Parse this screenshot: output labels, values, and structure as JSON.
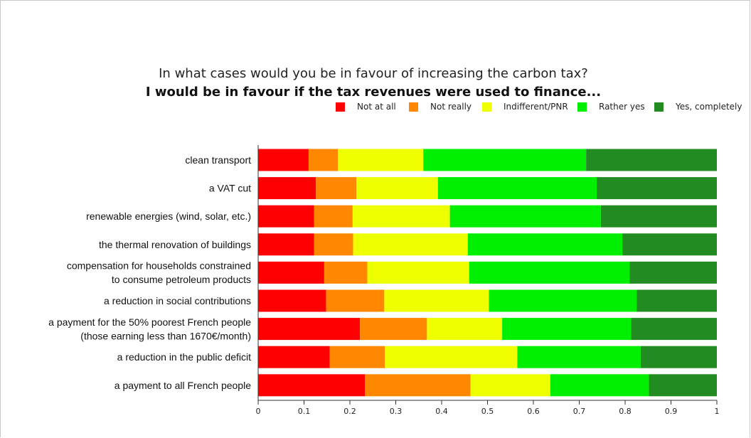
{
  "chart_data": {
    "type": "bar",
    "orientation": "horizontal",
    "stacked": true,
    "title": "In what cases would you be in favour of increasing the carbon tax?",
    "subtitle": "I would be in favour if the tax revenues were used to finance...",
    "categories": [
      [
        "clean transport"
      ],
      [
        "a VAT cut"
      ],
      [
        "renewable energies (wind, solar, etc.)"
      ],
      [
        "the thermal renovation of buildings"
      ],
      [
        "compensation for households constrained",
        "to consume petroleum products"
      ],
      [
        "a reduction in social contributions"
      ],
      [
        "a payment for the 50% poorest French people",
        "(those earning less than 1670€/month)"
      ],
      [
        "a reduction in the public deficit"
      ],
      [
        "a payment to all French people"
      ]
    ],
    "series": [
      {
        "name": "Not at all",
        "color": "#ff0000",
        "values": [
          0.11,
          0.126,
          0.122,
          0.122,
          0.144,
          0.148,
          0.222,
          0.156,
          0.233
        ]
      },
      {
        "name": "Not really",
        "color": "#ff8800",
        "values": [
          0.064,
          0.088,
          0.084,
          0.085,
          0.094,
          0.127,
          0.146,
          0.12,
          0.23
        ]
      },
      {
        "name": "Indifferent/PNR",
        "color": "#eeff00",
        "values": [
          0.186,
          0.178,
          0.212,
          0.25,
          0.222,
          0.228,
          0.164,
          0.289,
          0.174
        ]
      },
      {
        "name": "Rather yes",
        "color": "#00ee00",
        "values": [
          0.355,
          0.346,
          0.329,
          0.337,
          0.35,
          0.322,
          0.281,
          0.269,
          0.215
        ]
      },
      {
        "name": "Yes, completely",
        "color": "#228b22",
        "values": [
          0.285,
          0.262,
          0.253,
          0.206,
          0.19,
          0.175,
          0.187,
          0.166,
          0.148
        ]
      }
    ],
    "xlim": [
      0,
      1
    ],
    "xticks": [
      "0",
      "0.1",
      "0.2",
      "0.3",
      "0.4",
      "0.5",
      "0.6",
      "0.7",
      "0.8",
      "0.9",
      "1"
    ],
    "legend_position": "top-right",
    "grid": false
  }
}
